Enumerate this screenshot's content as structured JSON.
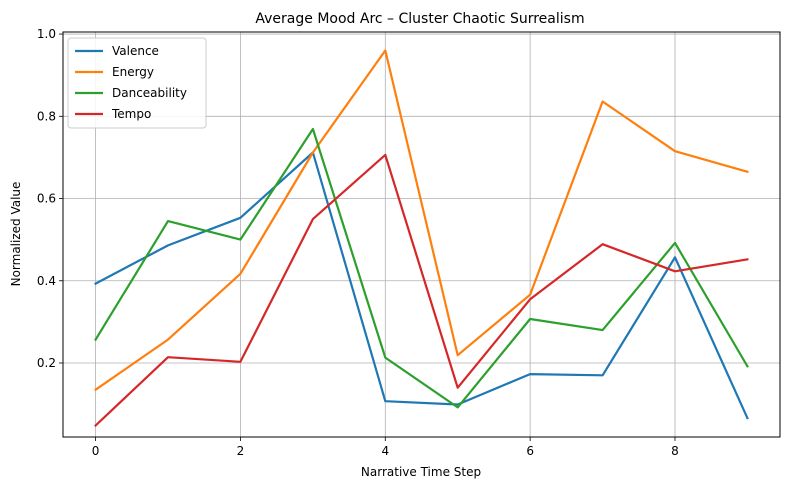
{
  "chart_data": {
    "type": "line",
    "title": "Average Mood Arc – Cluster Chaotic Surrealism",
    "xlabel": "Narrative Time Step",
    "ylabel": "Normalized Value",
    "x": [
      0,
      1,
      2,
      3,
      4,
      5,
      6,
      7,
      8,
      9
    ],
    "xlim": [
      -0.45,
      9.45
    ],
    "ylim": [
      0.02,
      1.005
    ],
    "xticks": [
      0,
      2,
      4,
      6,
      8
    ],
    "yticks": [
      0.2,
      0.4,
      0.6,
      0.8,
      1.0
    ],
    "grid": true,
    "legend_position": "upper-left",
    "series": [
      {
        "name": "Valence",
        "color": "#1f77b4",
        "values": [
          0.393,
          0.486,
          0.553,
          0.712,
          0.107,
          0.099,
          0.173,
          0.17,
          0.457,
          0.066
        ]
      },
      {
        "name": "Energy",
        "color": "#ff7f0e",
        "values": [
          0.135,
          0.257,
          0.417,
          0.712,
          0.96,
          0.219,
          0.366,
          0.836,
          0.715,
          0.665
        ]
      },
      {
        "name": "Danceability",
        "color": "#2ca02c",
        "values": [
          0.257,
          0.545,
          0.5,
          0.769,
          0.213,
          0.092,
          0.307,
          0.28,
          0.492,
          0.192
        ]
      },
      {
        "name": "Tempo",
        "color": "#d62728",
        "values": [
          0.048,
          0.214,
          0.203,
          0.55,
          0.706,
          0.14,
          0.355,
          0.489,
          0.423,
          0.452
        ]
      }
    ]
  }
}
